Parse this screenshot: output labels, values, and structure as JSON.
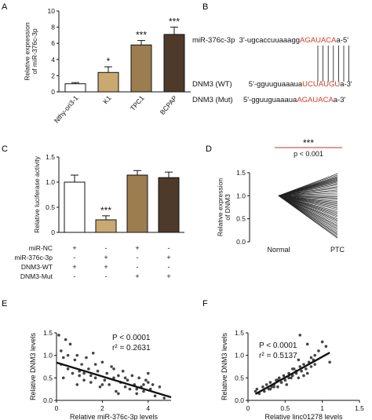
{
  "panels": {
    "A": "A",
    "B": "B",
    "C": "C",
    "D": "D",
    "E": "E",
    "F": "F"
  },
  "chart_data": [
    {
      "panel": "A",
      "type": "bar",
      "categories": [
        "Nthy-ori3-1",
        "K1",
        "TPC1",
        "BCPAP"
      ],
      "values": [
        1.0,
        2.4,
        5.8,
        7.1
      ],
      "errors": [
        0.15,
        0.7,
        0.55,
        0.9
      ],
      "significance": [
        "",
        "*",
        "***",
        "***"
      ],
      "colors": [
        "#ffffff",
        "#caa971",
        "#9c7d4f",
        "#4e3a2a"
      ],
      "ylabel": "Relative expression\nof miR-376c-3p",
      "ylim": [
        0,
        10
      ],
      "yticks": [
        0,
        2,
        4,
        6,
        8,
        10
      ]
    },
    {
      "panel": "C",
      "type": "bar",
      "categories": [
        "1",
        "2",
        "3",
        "4"
      ],
      "values": [
        1.0,
        0.25,
        1.14,
        1.09
      ],
      "errors": [
        0.14,
        0.08,
        0.09,
        0.11
      ],
      "significance": [
        "",
        "***",
        "",
        ""
      ],
      "colors": [
        "#ffffff",
        "#caa971",
        "#9c7d4f",
        "#4e3a2a"
      ],
      "ylabel": "Relative luciferase activity",
      "ylim": [
        0,
        1.5
      ],
      "yticks": [
        0.0,
        0.5,
        1.0,
        1.5
      ],
      "ytick_labels": [
        "0",
        "0.5",
        "1.0",
        "1.5"
      ],
      "conditions": [
        {
          "label": "miR-NC",
          "signs": [
            "+",
            "-",
            "+",
            "-"
          ]
        },
        {
          "label": "miR-376c-3p",
          "signs": [
            "-",
            "+",
            "-",
            "+"
          ]
        },
        {
          "label": "DNM3-WT",
          "signs": [
            "+",
            "+",
            "-",
            "-"
          ]
        },
        {
          "label": "DNM3-Mut",
          "signs": [
            "-",
            "-",
            "+",
            "+"
          ]
        }
      ]
    },
    {
      "panel": "D",
      "type": "line",
      "categories": [
        "Normal",
        "PTC"
      ],
      "normal_value": 1.0,
      "ptc_values": [
        1.48,
        1.45,
        1.42,
        1.4,
        1.38,
        1.36,
        1.34,
        1.32,
        1.3,
        1.27,
        1.24,
        1.2,
        1.17,
        1.13,
        1.1,
        1.06,
        1.02,
        0.98,
        0.95,
        0.92,
        0.88,
        0.85,
        0.82,
        0.79,
        0.76,
        0.73,
        0.7,
        0.66,
        0.63,
        0.6,
        0.57,
        0.54,
        0.5,
        0.47,
        0.44,
        0.4,
        0.36,
        0.33,
        0.29,
        0.26,
        0.22,
        0.18,
        0.15,
        0.11,
        0.08
      ],
      "ylabel": "Relative expression\nof DNM3",
      "ylim": [
        0,
        1.5
      ],
      "yticks": [
        0.0,
        0.5,
        1.0,
        1.5
      ],
      "ytick_labels": [
        "0.0",
        "0.5",
        "1.0",
        "1.5"
      ],
      "significance": "***",
      "pvalue_text": "p < 0.001"
    },
    {
      "panel": "E",
      "type": "scatter",
      "x": [
        0.1,
        0.2,
        0.3,
        0.4,
        0.5,
        0.6,
        0.7,
        0.8,
        0.9,
        1.0,
        1.1,
        1.2,
        1.3,
        1.4,
        1.5,
        1.6,
        1.7,
        1.8,
        1.9,
        2.0,
        2.1,
        2.2,
        2.3,
        2.4,
        2.5,
        2.6,
        2.7,
        2.8,
        2.9,
        3.0,
        3.1,
        3.2,
        3.3,
        3.4,
        3.5,
        3.6,
        3.7,
        3.8,
        3.9,
        4.0,
        4.1,
        4.2,
        4.3,
        4.5,
        4.7,
        0.2,
        0.5,
        1.0,
        1.5,
        2.0,
        2.5,
        3.0,
        3.5,
        4.0,
        0.3,
        0.9,
        1.7,
        2.7,
        3.8,
        1.2
      ],
      "y": [
        1.45,
        1.1,
        0.95,
        1.35,
        0.7,
        1.25,
        0.6,
        0.9,
        1.0,
        0.55,
        0.8,
        0.45,
        0.95,
        0.7,
        0.4,
        1.05,
        0.5,
        0.65,
        0.3,
        0.85,
        0.45,
        0.6,
        0.35,
        0.75,
        0.5,
        0.2,
        0.55,
        0.4,
        0.65,
        0.3,
        0.45,
        0.25,
        0.55,
        0.35,
        0.15,
        0.5,
        0.3,
        0.2,
        0.45,
        0.6,
        0.25,
        0.35,
        0.1,
        0.3,
        0.05,
        0.8,
        1.0,
        0.65,
        0.55,
        0.35,
        0.7,
        0.5,
        0.25,
        0.4,
        0.5,
        0.35,
        0.8,
        0.15,
        0.35,
        0.6
      ],
      "fit_line": {
        "x": [
          0,
          5
        ],
        "y": [
          0.84,
          0.07
        ]
      },
      "xlabel": "Relative miR-376c-3p levels",
      "ylabel": "Relative DNM3 levels",
      "xlim": [
        0,
        5
      ],
      "ylim": [
        0,
        1.5
      ],
      "xticks": [
        0,
        2,
        4
      ],
      "yticks": [
        0.0,
        0.5,
        1.0,
        1.5
      ],
      "ytick_labels": [
        "0.0",
        "0.5",
        "1.0",
        "1.5"
      ],
      "stats": [
        "P < 0.0001",
        "r² = 0.2631"
      ]
    },
    {
      "panel": "F",
      "type": "scatter",
      "x": [
        0.1,
        0.12,
        0.15,
        0.2,
        0.22,
        0.25,
        0.28,
        0.3,
        0.32,
        0.35,
        0.38,
        0.4,
        0.42,
        0.45,
        0.48,
        0.5,
        0.52,
        0.55,
        0.58,
        0.6,
        0.62,
        0.65,
        0.68,
        0.7,
        0.72,
        0.75,
        0.78,
        0.8,
        0.82,
        0.85,
        0.88,
        0.9,
        0.95,
        1.0,
        1.05,
        0.3,
        0.45,
        0.55,
        0.65,
        0.75,
        0.85,
        0.5,
        0.6,
        0.7,
        0.8,
        0.35,
        0.4,
        0.68,
        0.9,
        1.1
      ],
      "y": [
        0.2,
        0.25,
        0.15,
        0.3,
        0.2,
        0.35,
        0.25,
        0.4,
        0.3,
        0.35,
        0.45,
        0.3,
        0.5,
        0.4,
        0.55,
        0.45,
        0.35,
        0.6,
        0.5,
        0.55,
        0.7,
        0.6,
        0.5,
        0.75,
        0.65,
        0.8,
        0.7,
        0.6,
        0.85,
        0.75,
        0.9,
        1.0,
        1.1,
        1.3,
        1.2,
        0.25,
        0.4,
        0.5,
        0.65,
        0.55,
        0.95,
        0.45,
        0.7,
        1.45,
        1.25,
        0.3,
        0.45,
        0.9,
        0.8,
        0.85
      ],
      "fit_line": {
        "x": [
          0.1,
          1.1
        ],
        "y": [
          0.14,
          1.06
        ]
      },
      "xlabel": "Relative linc01278 levels",
      "ylabel": "Relative DNM3 levels",
      "xlim": [
        0,
        1.5
      ],
      "ylim": [
        0,
        1.5
      ],
      "xticks": [
        0,
        0.5,
        1,
        1.5
      ],
      "xtick_labels": [
        "0",
        "0.5",
        "1",
        "1.5"
      ],
      "yticks": [
        0.0,
        0.5,
        1.0,
        1.5
      ],
      "ytick_labels": [
        "0.0",
        "0.5",
        "1.0",
        "1.5"
      ],
      "stats": [
        "P < 0.0001",
        "r² = 0.5137"
      ]
    }
  ],
  "panel_b": {
    "rows": [
      {
        "label": "miR-376c-3p",
        "prefix": "3'-ugcaccuuaaagg",
        "highlight": "AGAUACA",
        "suffix": "a-5'"
      },
      {
        "label": "DNM3 (WT)",
        "prefix": "5'-gguuguaaaua",
        "highlight": "UCUAUGU",
        "suffix": "a-3'"
      },
      {
        "label": "DNM3 (Mut)",
        "prefix": "5'-gguuguaaaua",
        "highlight": "AGAUACA",
        "suffix": "a-3'"
      }
    ]
  }
}
